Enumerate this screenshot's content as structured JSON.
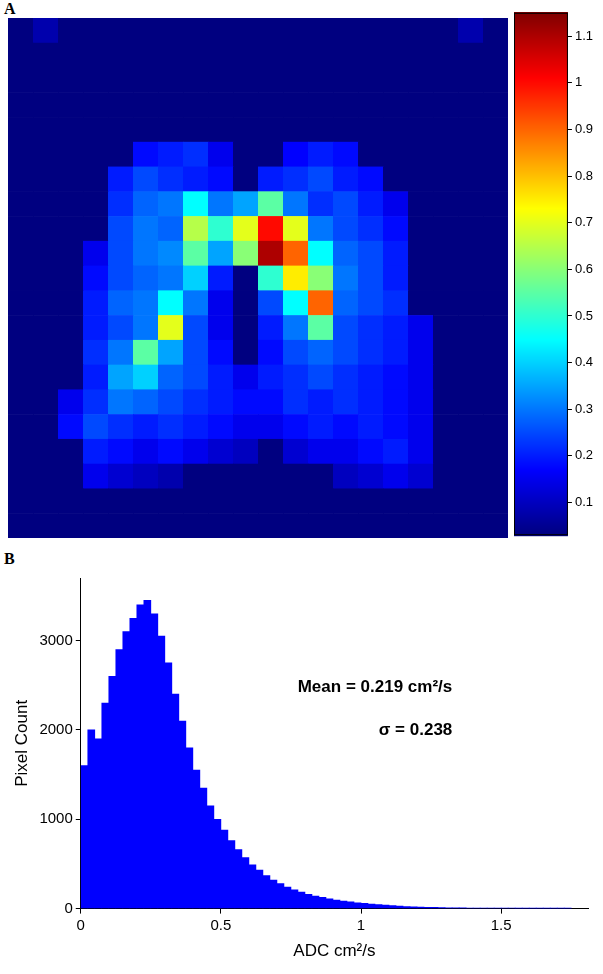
{
  "chart_data": [
    {
      "type": "heatmap",
      "panel": "A",
      "cells": [
        [
          0.03,
          0.08,
          0.03,
          0.03,
          0.03,
          0.03,
          0.03,
          0.03,
          0.03,
          0.03,
          0.03,
          0.03,
          0.03,
          0.03,
          0.03,
          0.03,
          0.03,
          0.03,
          0.08,
          0.03
        ],
        [
          0.03,
          0.03,
          0.03,
          0.03,
          0.03,
          0.03,
          0.03,
          0.03,
          0.03,
          0.03,
          0.03,
          0.03,
          0.03,
          0.03,
          0.03,
          0.03,
          0.03,
          0.03,
          0.03,
          0.03
        ],
        [
          0.03,
          0.03,
          0.03,
          0.03,
          0.03,
          0.03,
          0.03,
          0.03,
          0.03,
          0.03,
          0.03,
          0.03,
          0.03,
          0.03,
          0.03,
          0.03,
          0.03,
          0.03,
          0.03,
          0.03
        ],
        [
          0.03,
          0.03,
          0.03,
          0.03,
          0.03,
          0.03,
          0.03,
          0.03,
          0.03,
          0.03,
          0.03,
          0.03,
          0.03,
          0.03,
          0.03,
          0.03,
          0.03,
          0.03,
          0.03,
          0.03
        ],
        [
          0.03,
          0.03,
          0.03,
          0.03,
          0.03,
          0.03,
          0.03,
          0.03,
          0.03,
          0.03,
          0.03,
          0.03,
          0.03,
          0.03,
          0.03,
          0.03,
          0.03,
          0.03,
          0.03,
          0.03
        ],
        [
          0.03,
          0.03,
          0.03,
          0.03,
          0.03,
          0.18,
          0.2,
          0.22,
          0.15,
          0.03,
          0.03,
          0.17,
          0.2,
          0.18,
          0.03,
          0.03,
          0.03,
          0.03,
          0.03,
          0.03
        ],
        [
          0.03,
          0.03,
          0.03,
          0.03,
          0.2,
          0.25,
          0.22,
          0.2,
          0.18,
          0.03,
          0.2,
          0.22,
          0.25,
          0.2,
          0.18,
          0.03,
          0.03,
          0.03,
          0.03,
          0.03
        ],
        [
          0.03,
          0.03,
          0.03,
          0.03,
          0.22,
          0.28,
          0.3,
          0.45,
          0.3,
          0.35,
          0.55,
          0.3,
          0.22,
          0.25,
          0.2,
          0.15,
          0.03,
          0.03,
          0.03,
          0.03
        ],
        [
          0.03,
          0.03,
          0.03,
          0.03,
          0.25,
          0.3,
          0.28,
          0.65,
          0.5,
          0.7,
          1.0,
          0.7,
          0.3,
          0.25,
          0.22,
          0.18,
          0.03,
          0.03,
          0.03,
          0.03
        ],
        [
          0.03,
          0.03,
          0.03,
          0.15,
          0.25,
          0.3,
          0.32,
          0.55,
          0.35,
          0.6,
          1.1,
          0.9,
          0.45,
          0.28,
          0.25,
          0.2,
          0.03,
          0.03,
          0.03,
          0.03
        ],
        [
          0.03,
          0.03,
          0.03,
          0.18,
          0.25,
          0.28,
          0.3,
          0.4,
          0.2,
          0.03,
          0.5,
          0.75,
          0.6,
          0.3,
          0.25,
          0.2,
          0.03,
          0.03,
          0.03,
          0.03
        ],
        [
          0.03,
          0.03,
          0.03,
          0.2,
          0.28,
          0.3,
          0.45,
          0.3,
          0.15,
          0.03,
          0.25,
          0.45,
          0.9,
          0.28,
          0.25,
          0.22,
          0.03,
          0.03,
          0.03,
          0.03
        ],
        [
          0.03,
          0.03,
          0.03,
          0.2,
          0.25,
          0.3,
          0.7,
          0.25,
          0.15,
          0.03,
          0.2,
          0.3,
          0.55,
          0.25,
          0.22,
          0.2,
          0.15,
          0.03,
          0.03,
          0.03
        ],
        [
          0.03,
          0.03,
          0.03,
          0.22,
          0.3,
          0.55,
          0.35,
          0.25,
          0.18,
          0.03,
          0.18,
          0.25,
          0.28,
          0.25,
          0.22,
          0.2,
          0.15,
          0.03,
          0.03,
          0.03
        ],
        [
          0.03,
          0.03,
          0.03,
          0.2,
          0.35,
          0.4,
          0.28,
          0.25,
          0.2,
          0.15,
          0.2,
          0.22,
          0.25,
          0.22,
          0.2,
          0.18,
          0.15,
          0.03,
          0.03,
          0.03
        ],
        [
          0.03,
          0.03,
          0.15,
          0.22,
          0.3,
          0.28,
          0.25,
          0.22,
          0.2,
          0.18,
          0.18,
          0.22,
          0.2,
          0.22,
          0.2,
          0.18,
          0.15,
          0.03,
          0.03,
          0.03
        ],
        [
          0.03,
          0.03,
          0.18,
          0.25,
          0.22,
          0.2,
          0.22,
          0.2,
          0.18,
          0.15,
          0.15,
          0.18,
          0.2,
          0.18,
          0.2,
          0.18,
          0.15,
          0.03,
          0.03,
          0.03
        ],
        [
          0.03,
          0.03,
          0.03,
          0.2,
          0.18,
          0.15,
          0.18,
          0.15,
          0.12,
          0.1,
          0.03,
          0.12,
          0.15,
          0.15,
          0.18,
          0.2,
          0.15,
          0.03,
          0.03,
          0.03
        ],
        [
          0.03,
          0.03,
          0.03,
          0.15,
          0.12,
          0.1,
          0.08,
          0.03,
          0.03,
          0.03,
          0.03,
          0.03,
          0.03,
          0.1,
          0.12,
          0.15,
          0.12,
          0.03,
          0.03,
          0.03
        ],
        [
          0.03,
          0.03,
          0.03,
          0.03,
          0.03,
          0.03,
          0.03,
          0.03,
          0.03,
          0.03,
          0.03,
          0.03,
          0.03,
          0.03,
          0.03,
          0.03,
          0.03,
          0.03,
          0.03,
          0.03
        ],
        [
          0.03,
          0.03,
          0.03,
          0.03,
          0.03,
          0.03,
          0.03,
          0.03,
          0.03,
          0.03,
          0.03,
          0.03,
          0.03,
          0.03,
          0.03,
          0.03,
          0.03,
          0.03,
          0.03,
          0.03
        ]
      ],
      "colorbar": {
        "range": [
          0.03,
          1.15
        ],
        "ticks": [
          0.1,
          0.2,
          0.3,
          0.4,
          0.5,
          0.6,
          0.7,
          0.8,
          0.9,
          1,
          1.1
        ]
      },
      "tick_labels": false
    },
    {
      "type": "histogram",
      "panel": "B",
      "bins": [
        0,
        0.025,
        0.05,
        0.075,
        0.1,
        0.125,
        0.15,
        0.175,
        0.2,
        0.225,
        0.25,
        0.275,
        0.3,
        0.325,
        0.35,
        0.375,
        0.4,
        0.425,
        0.45,
        0.475,
        0.5,
        0.525,
        0.55,
        0.575,
        0.6,
        0.625,
        0.65,
        0.675,
        0.7,
        0.725,
        0.75,
        0.775,
        0.8,
        0.825,
        0.85,
        0.875,
        0.9,
        0.925,
        0.95,
        0.975,
        1,
        1.025,
        1.05,
        1.075,
        1.1,
        1.125,
        1.15,
        1.175,
        1.2,
        1.225,
        1.25,
        1.275,
        1.3,
        1.325,
        1.35,
        1.375,
        1.4,
        1.425,
        1.45,
        1.475,
        1.5,
        1.525,
        1.55,
        1.575,
        1.6,
        1.625,
        1.65,
        1.675,
        1.7,
        1.725,
        1.75
      ],
      "values": [
        1600,
        2000,
        1900,
        2300,
        2600,
        2900,
        3100,
        3250,
        3400,
        3450,
        3300,
        3050,
        2750,
        2400,
        2100,
        1800,
        1550,
        1350,
        1150,
        1000,
        880,
        760,
        660,
        570,
        490,
        430,
        370,
        320,
        280,
        240,
        210,
        185,
        160,
        140,
        125,
        110,
        95,
        85,
        75,
        65,
        58,
        50,
        44,
        38,
        33,
        28,
        24,
        20,
        17,
        15,
        13,
        11,
        10,
        9,
        8,
        7,
        6,
        6,
        5,
        5,
        4,
        4,
        3,
        3,
        3,
        2,
        2,
        2,
        2,
        1
      ],
      "color": "#0000ff",
      "xlabel": "ADC cm²/s",
      "ylabel": "Pixel Count",
      "xlim": [
        0,
        1.81
      ],
      "ylim": [
        0,
        3700
      ],
      "xticks": [
        0,
        0.5,
        1,
        1.5
      ],
      "yticks": [
        0,
        1000,
        2000,
        3000
      ],
      "annotations": [
        "Mean = 0.219 cm²/s",
        "σ = 0.238"
      ],
      "grid": false
    }
  ]
}
